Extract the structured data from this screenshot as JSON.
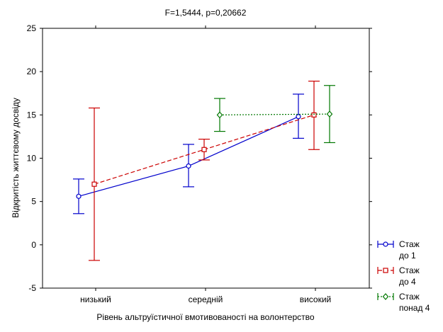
{
  "chart_data": {
    "type": "line",
    "title": "F=1,5444, p=0,20662",
    "xlabel": "Рівень альтруїстичної вмотивованості на волонтерство",
    "ylabel": "Відкритість життєвому досвіду",
    "categories": [
      "низький",
      "середній",
      "високий"
    ],
    "ylim": [
      -5,
      25
    ],
    "yticks": [
      -5,
      0,
      5,
      10,
      15,
      20,
      25
    ],
    "grid": false,
    "legend_position": "bottom-right",
    "series": [
      {
        "name": "Стаж до 1",
        "legend_lines": [
          "Стаж",
          "до 1"
        ],
        "color": "#0000cc",
        "marker": "circle",
        "line_style": "solid",
        "values": [
          5.6,
          9.1,
          14.8
        ],
        "lower": [
          3.6,
          6.7,
          12.3
        ],
        "upper": [
          7.6,
          11.6,
          17.4
        ]
      },
      {
        "name": "Стаж до 4",
        "legend_lines": [
          "Стаж",
          "до 4"
        ],
        "color": "#cc0000",
        "marker": "square",
        "line_style": "dashed",
        "values": [
          7.0,
          11.0,
          15.0
        ],
        "lower": [
          -1.8,
          9.8,
          11.0
        ],
        "upper": [
          15.8,
          12.2,
          18.9
        ]
      },
      {
        "name": "Стаж понад 4",
        "legend_lines": [
          "Стаж",
          "понад 4"
        ],
        "color": "#007700",
        "marker": "diamond",
        "line_style": "dotted",
        "values": [
          null,
          15.0,
          15.1
        ],
        "lower": [
          null,
          13.1,
          11.8
        ],
        "upper": [
          null,
          16.9,
          18.4
        ]
      }
    ]
  }
}
